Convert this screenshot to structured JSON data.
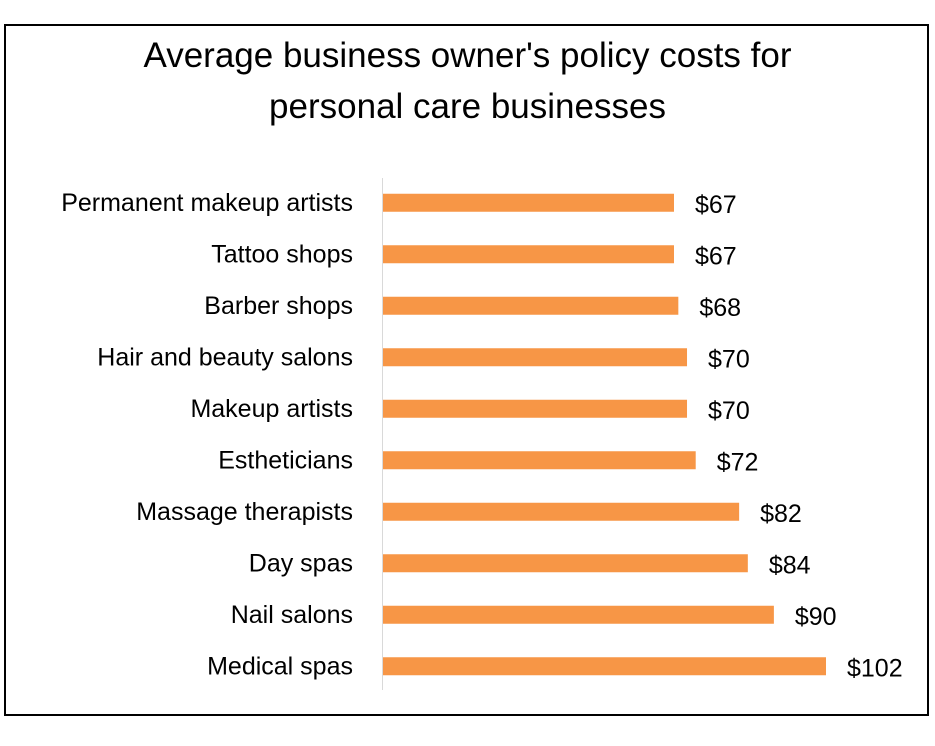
{
  "chart_data": {
    "type": "bar",
    "orientation": "horizontal",
    "title_lines": [
      "Average business owner's policy costs for",
      "personal care businesses"
    ],
    "categories": [
      "Permanent makeup artists",
      "Tattoo shops",
      "Barber shops",
      "Hair and beauty salons",
      "Makeup artists",
      "Estheticians",
      "Massage therapists",
      "Day spas",
      "Nail salons",
      "Medical spas"
    ],
    "values": [
      67,
      67,
      68,
      70,
      70,
      72,
      82,
      84,
      90,
      102
    ],
    "data_labels": [
      "$67",
      "$67",
      "$68",
      "$70",
      "$70",
      "$72",
      "$82",
      "$84",
      "$90",
      "$102"
    ],
    "xlim": [
      0,
      102
    ],
    "xlabel": "",
    "ylabel": "",
    "grid": false,
    "legend": "none",
    "bar_color": "#F79646"
  }
}
